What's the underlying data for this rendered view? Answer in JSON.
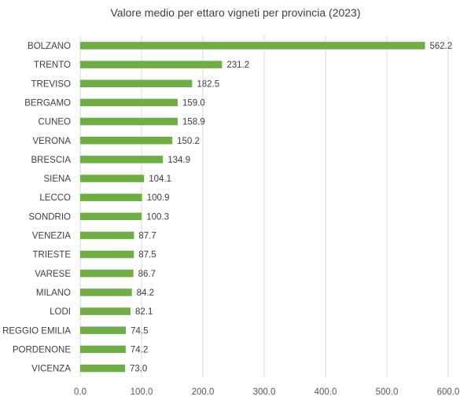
{
  "chart_data": {
    "type": "bar",
    "orientation": "horizontal",
    "title": "Valore medio per ettaro vigneti per provincia (2023)",
    "xlabel": "",
    "ylabel": "",
    "categories": [
      "BOLZANO",
      "TRENTO",
      "TREVISO",
      "BERGAMO",
      "CUNEO",
      "VERONA",
      "BRESCIA",
      "SIENA",
      "LECCO",
      "SONDRIO",
      "VENEZIA",
      "TRIESTE",
      "VARESE",
      "MILANO",
      "LODI",
      "REGGIO EMILIA",
      "PORDENONE",
      "VICENZA"
    ],
    "values": [
      562.2,
      231.2,
      182.5,
      159.0,
      158.9,
      150.2,
      134.9,
      104.1,
      100.9,
      100.3,
      87.7,
      87.5,
      86.7,
      84.2,
      82.1,
      74.5,
      74.2,
      73.0
    ],
    "value_labels": [
      "562.2",
      "231.2",
      "182.5",
      "159.0",
      "158.9",
      "150.2",
      "134.9",
      "104.1",
      "100.9",
      "100.3",
      "87.7",
      "87.5",
      "86.7",
      "84.2",
      "82.1",
      "74.5",
      "74.2",
      "73.0"
    ],
    "xlim": [
      0,
      600
    ],
    "xticks": [
      0,
      100,
      200,
      300,
      400,
      500,
      600
    ],
    "xtick_labels": [
      "0.0",
      "100.0",
      "200.0",
      "300.0",
      "400.0",
      "500.0",
      "600.0"
    ],
    "grid": "vertical",
    "legend": "none",
    "colors": {
      "bar": "#70AD47",
      "grid": "#D9D9D9",
      "text": "#404040"
    }
  }
}
